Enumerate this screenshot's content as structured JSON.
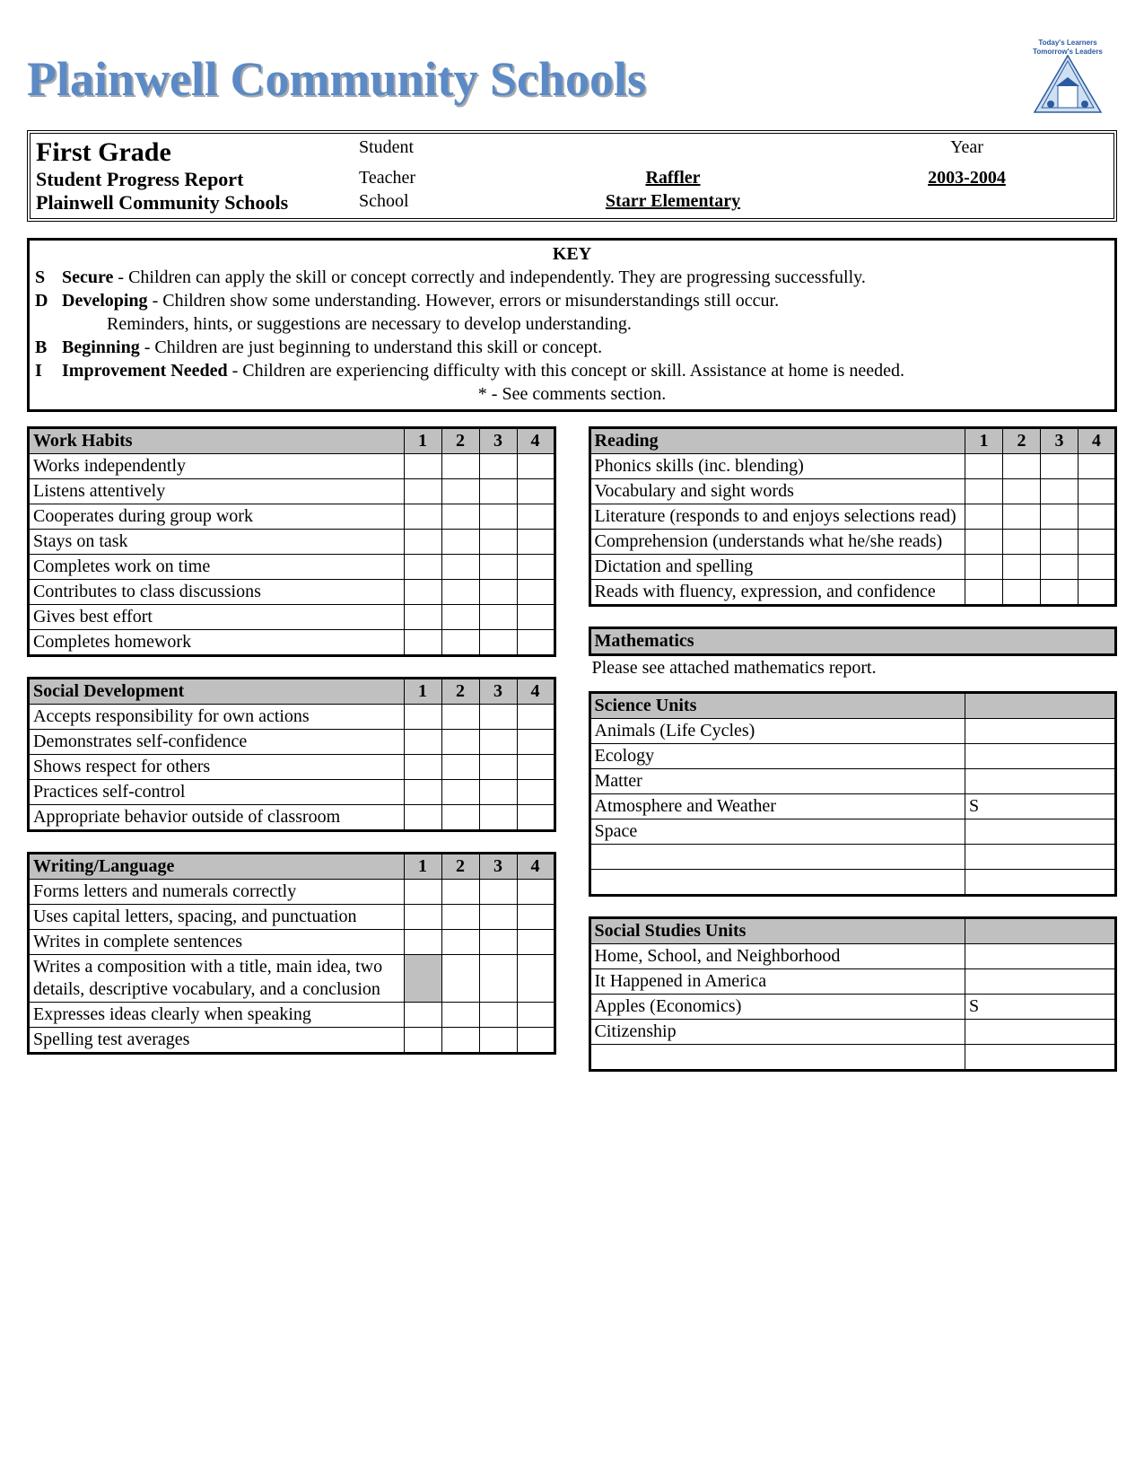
{
  "title": "Plainwell Community Schools",
  "logo_tagline_top": "Today's Learners",
  "logo_tagline_bottom": "Tomorrow's Leaders",
  "header": {
    "grade": "First Grade",
    "report": "Student Progress Report",
    "district": "Plainwell Community Schools",
    "student_lbl": "Student",
    "teacher_lbl": "Teacher",
    "school_lbl": "School",
    "year_lbl": "Year",
    "teacher_val": "Raffler",
    "school_val": "Starr Elementary",
    "year_val": "2003-2004"
  },
  "key": {
    "title": "KEY",
    "items": [
      {
        "code": "S",
        "label": "Secure",
        "text": " - Children can apply the skill or concept correctly and independently.  They are progressing successfully."
      },
      {
        "code": "D",
        "label": "Developing",
        "text": " - Children show some understanding.  However, errors or misunderstandings still occur."
      },
      {
        "code": "",
        "label": "",
        "text": "Reminders, hints, or suggestions are necessary to develop understanding.",
        "indent": true
      },
      {
        "code": "B",
        "label": "Beginning",
        "text": " - Children are just beginning to understand this skill or concept."
      },
      {
        "code": "I",
        "label": "Improvement Needed",
        "text": " - Children are experiencing difficulty with this concept or skill.  Assistance at home is needed."
      }
    ],
    "footer": "*  -  See comments section."
  },
  "periods": [
    "1",
    "2",
    "3",
    "4"
  ],
  "left_sections": [
    {
      "title": "Work Habits",
      "rows": [
        {
          "label": "Works independently"
        },
        {
          "label": "Listens attentively"
        },
        {
          "label": "Cooperates during group work"
        },
        {
          "label": "Stays on task"
        },
        {
          "label": "Completes work on time"
        },
        {
          "label": "Contributes to class discussions"
        },
        {
          "label": "Gives best effort"
        },
        {
          "label": "Completes homework"
        }
      ]
    },
    {
      "title": "Social Development",
      "rows": [
        {
          "label": "Accepts responsibility for own actions"
        },
        {
          "label": "Demonstrates self-confidence"
        },
        {
          "label": "Shows respect for others"
        },
        {
          "label": "Practices self-control"
        },
        {
          "label": "Appropriate behavior outside of classroom"
        }
      ]
    },
    {
      "title": "Writing/Language",
      "rows": [
        {
          "label": "Forms letters and numerals correctly"
        },
        {
          "label": "Uses capital letters, spacing, and punctuation"
        },
        {
          "label": "Writes in complete sentences"
        },
        {
          "label": "Writes a composition with a title, main idea, two details, descriptive vocabulary, and a conclusion",
          "shade1": true
        },
        {
          "label": "Expresses ideas clearly when speaking"
        },
        {
          "label": "Spelling test averages"
        }
      ]
    }
  ],
  "right_sections": [
    {
      "title": "Reading",
      "type": "periods",
      "rows": [
        {
          "label": "Phonics skills (inc. blending)"
        },
        {
          "label": "Vocabulary and sight words"
        },
        {
          "label": "Literature (responds to and enjoys selections read)"
        },
        {
          "label": "Comprehension (understands what he/she reads)"
        },
        {
          "label": "Dictation and spelling"
        },
        {
          "label": "Reads with fluency, expression, and confidence"
        }
      ]
    },
    {
      "title": "Mathematics",
      "type": "note",
      "note": "Please see attached mathematics report."
    },
    {
      "title": "Science Units",
      "type": "twocol",
      "rows": [
        {
          "label": "Animals (Life Cycles)",
          "val": ""
        },
        {
          "label": "Ecology",
          "val": ""
        },
        {
          "label": "Matter",
          "val": ""
        },
        {
          "label": "Atmosphere and Weather",
          "val": "S"
        },
        {
          "label": "Space",
          "val": ""
        },
        {
          "label": "",
          "val": ""
        },
        {
          "label": "",
          "val": ""
        }
      ]
    },
    {
      "title": "Social Studies Units",
      "type": "twocol",
      "rows": [
        {
          "label": "Home, School, and Neighborhood",
          "val": ""
        },
        {
          "label": "It Happened in America",
          "val": ""
        },
        {
          "label": "Apples (Economics)",
          "val": "S"
        },
        {
          "label": "Citizenship",
          "val": ""
        },
        {
          "label": "",
          "val": ""
        }
      ]
    }
  ]
}
